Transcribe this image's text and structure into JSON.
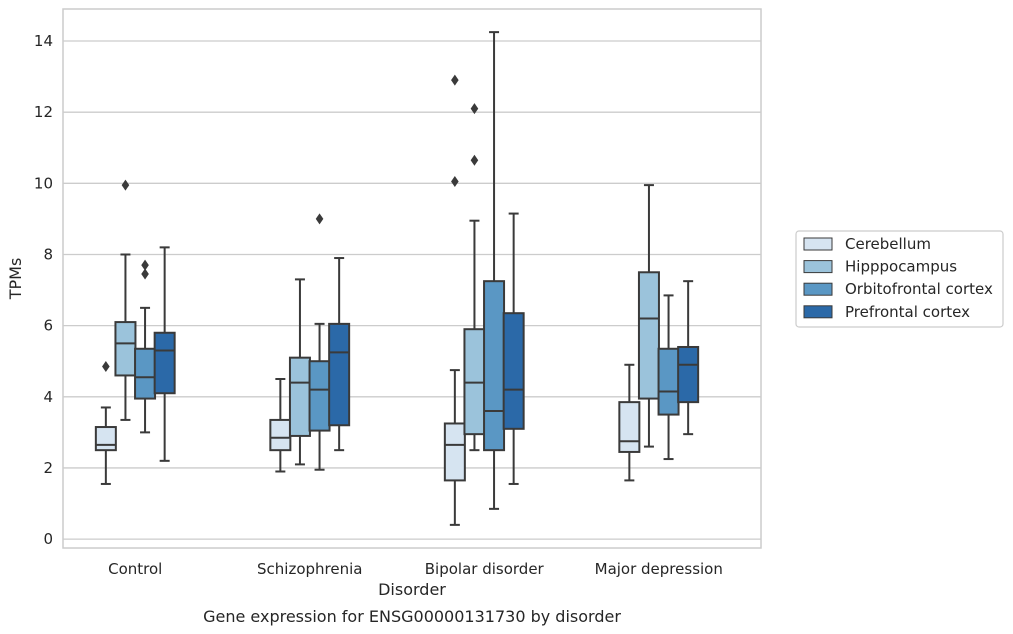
{
  "chart_data": {
    "type": "boxplot",
    "title": "Gene expression for ENSG00000131730 by disorder",
    "xlabel": "Disorder",
    "ylabel": "TPMs",
    "ylim": [
      -0.25,
      14.9
    ],
    "yticks": [
      0,
      2,
      4,
      6,
      8,
      10,
      12,
      14
    ],
    "grid": true,
    "legend_placement": "right",
    "categories": [
      "Control",
      "Schizophrenia",
      "Bipolar disorder",
      "Major depression"
    ],
    "series": [
      {
        "name": "Cerebellum",
        "color": "#d6e4f1",
        "boxes": [
          {
            "whislo": 1.55,
            "q1": 2.5,
            "med": 2.65,
            "q3": 3.15,
            "whishi": 3.7,
            "fliers": [
              4.85
            ]
          },
          {
            "whislo": 1.9,
            "q1": 2.5,
            "med": 2.85,
            "q3": 3.35,
            "whishi": 4.5,
            "fliers": []
          },
          {
            "whislo": 0.4,
            "q1": 1.65,
            "med": 2.65,
            "q3": 3.25,
            "whishi": 4.75,
            "fliers": []
          },
          {
            "whislo": 1.65,
            "q1": 2.45,
            "med": 2.75,
            "q3": 3.85,
            "whishi": 4.9,
            "fliers": []
          }
        ]
      },
      {
        "name": "Hipppocampus",
        "color": "#9bc3db",
        "boxes": [
          {
            "whislo": 3.35,
            "q1": 4.6,
            "med": 5.5,
            "q3": 6.1,
            "whishi": 8.0,
            "fliers": [
              9.95
            ]
          },
          {
            "whislo": 2.1,
            "q1": 2.9,
            "med": 4.4,
            "q3": 5.1,
            "whishi": 7.3,
            "fliers": []
          },
          {
            "whislo": 2.5,
            "q1": 2.95,
            "med": 4.4,
            "q3": 5.9,
            "whishi": 8.95,
            "fliers": [
              10.65,
              12.1
            ]
          },
          {
            "whislo": 2.6,
            "q1": 3.95,
            "med": 6.2,
            "q3": 7.5,
            "whishi": 9.95,
            "fliers": []
          }
        ]
      },
      {
        "name": "Orbitofrontal cortex",
        "color": "#5a97c4",
        "boxes": [
          {
            "whislo": 3.0,
            "q1": 3.95,
            "med": 4.55,
            "q3": 5.35,
            "whishi": 6.5,
            "fliers": [
              7.45,
              7.7
            ]
          },
          {
            "whislo": 1.95,
            "q1": 3.05,
            "med": 4.2,
            "q3": 5.0,
            "whishi": 6.05,
            "fliers": [
              9.0
            ]
          },
          {
            "whislo": 0.85,
            "q1": 2.5,
            "med": 3.6,
            "q3": 7.25,
            "whishi": 14.25,
            "fliers": []
          },
          {
            "whislo": 2.25,
            "q1": 3.5,
            "med": 4.15,
            "q3": 5.35,
            "whishi": 6.85,
            "fliers": []
          }
        ]
      },
      {
        "name": "Prefrontal cortex",
        "color": "#2b69a8",
        "boxes": [
          {
            "whislo": 2.2,
            "q1": 4.1,
            "med": 5.3,
            "q3": 5.8,
            "whishi": 8.2,
            "fliers": []
          },
          {
            "whislo": 2.5,
            "q1": 3.2,
            "med": 5.25,
            "q3": 6.05,
            "whishi": 7.9,
            "fliers": []
          },
          {
            "whislo": 1.55,
            "q1": 3.1,
            "med": 4.2,
            "q3": 6.35,
            "whishi": 9.15,
            "fliers": []
          },
          {
            "whislo": 2.95,
            "q1": 3.85,
            "med": 4.9,
            "q3": 5.4,
            "whishi": 7.25,
            "fliers": []
          }
        ]
      }
    ],
    "extra_fliers": [
      {
        "category": 2,
        "series": 0,
        "values": [
          10.05,
          12.9
        ]
      }
    ]
  }
}
